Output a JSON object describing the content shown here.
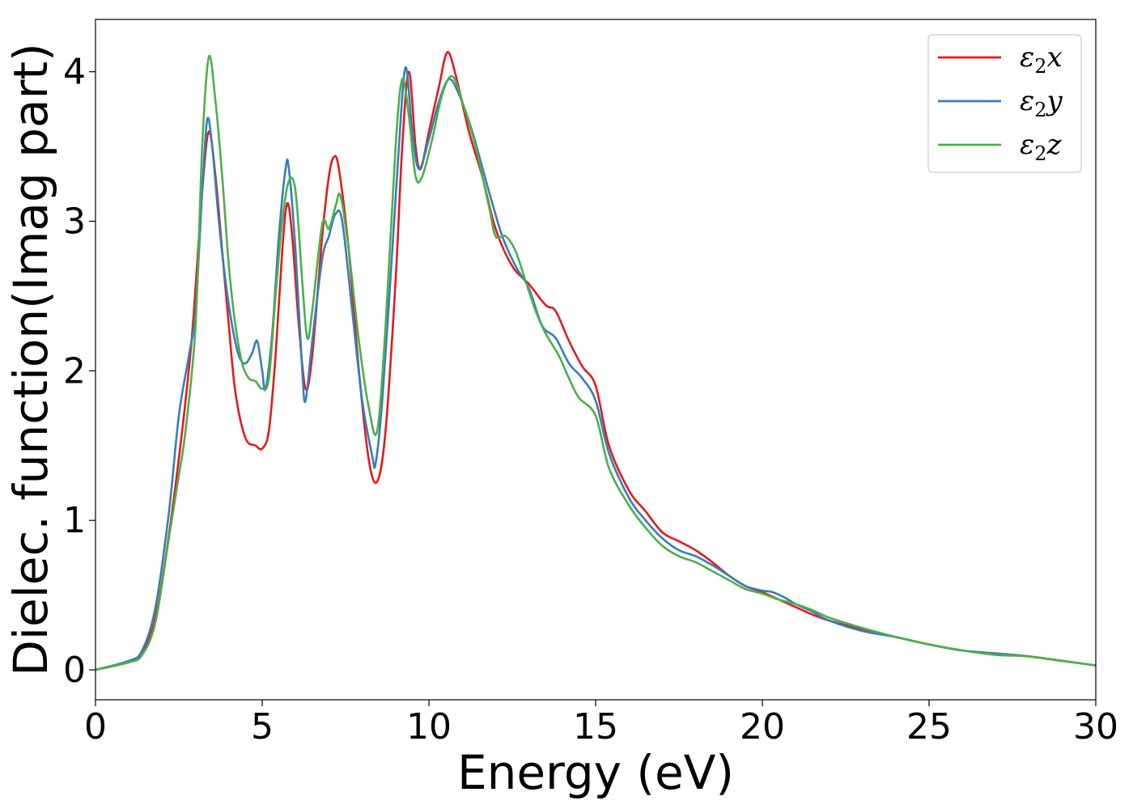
{
  "chart_data": {
    "type": "line",
    "title": "",
    "xlabel": "Energy (eV)",
    "ylabel": "Dielec. function(Imag part)",
    "xlim": [
      0,
      30
    ],
    "ylim": [
      -0.2,
      4.35
    ],
    "xticks": [
      0,
      5,
      10,
      15,
      20,
      25,
      30
    ],
    "yticks": [
      0,
      1,
      2,
      3,
      4
    ],
    "grid": false,
    "legend_position": "top-right",
    "series": [
      {
        "name": "ε2x",
        "name_base": "ε",
        "name_sub": "2",
        "name_tail": "x",
        "color": "#e41a1c",
        "points": [
          [
            0,
            0
          ],
          [
            1,
            0.06
          ],
          [
            1.4,
            0.12
          ],
          [
            1.8,
            0.35
          ],
          [
            2.2,
            0.9
          ],
          [
            2.6,
            1.6
          ],
          [
            2.9,
            2.25
          ],
          [
            3.2,
            3.2
          ],
          [
            3.4,
            3.6
          ],
          [
            3.6,
            3.3
          ],
          [
            3.8,
            2.8
          ],
          [
            4.0,
            2.3
          ],
          [
            4.2,
            1.85
          ],
          [
            4.5,
            1.55
          ],
          [
            4.8,
            1.5
          ],
          [
            5.0,
            1.48
          ],
          [
            5.2,
            1.6
          ],
          [
            5.4,
            2.1
          ],
          [
            5.6,
            2.8
          ],
          [
            5.75,
            3.12
          ],
          [
            5.9,
            2.9
          ],
          [
            6.1,
            2.3
          ],
          [
            6.3,
            1.88
          ],
          [
            6.5,
            2.1
          ],
          [
            6.8,
            2.9
          ],
          [
            7.0,
            3.3
          ],
          [
            7.15,
            3.43
          ],
          [
            7.3,
            3.35
          ],
          [
            7.6,
            2.8
          ],
          [
            7.9,
            2.0
          ],
          [
            8.2,
            1.4
          ],
          [
            8.45,
            1.26
          ],
          [
            8.7,
            1.6
          ],
          [
            9.0,
            2.6
          ],
          [
            9.2,
            3.5
          ],
          [
            9.4,
            4.0
          ],
          [
            9.6,
            3.5
          ],
          [
            9.75,
            3.35
          ],
          [
            10.0,
            3.6
          ],
          [
            10.3,
            3.9
          ],
          [
            10.55,
            4.13
          ],
          [
            10.8,
            3.98
          ],
          [
            11.2,
            3.6
          ],
          [
            11.6,
            3.3
          ],
          [
            12.0,
            2.95
          ],
          [
            12.5,
            2.7
          ],
          [
            13.0,
            2.58
          ],
          [
            13.5,
            2.44
          ],
          [
            13.8,
            2.4
          ],
          [
            14.2,
            2.2
          ],
          [
            14.6,
            2.03
          ],
          [
            15.0,
            1.9
          ],
          [
            15.4,
            1.5
          ],
          [
            16.0,
            1.2
          ],
          [
            16.5,
            1.06
          ],
          [
            17.0,
            0.92
          ],
          [
            17.5,
            0.86
          ],
          [
            18.0,
            0.8
          ],
          [
            18.5,
            0.72
          ],
          [
            19.0,
            0.63
          ],
          [
            19.5,
            0.56
          ],
          [
            20.0,
            0.52
          ],
          [
            20.5,
            0.47
          ],
          [
            21.0,
            0.42
          ],
          [
            21.5,
            0.37
          ],
          [
            22.0,
            0.33
          ],
          [
            23.0,
            0.27
          ],
          [
            24.0,
            0.22
          ],
          [
            25.0,
            0.17
          ],
          [
            26.0,
            0.13
          ],
          [
            27.0,
            0.11
          ],
          [
            28.0,
            0.09
          ],
          [
            29.0,
            0.06
          ],
          [
            30.0,
            0.03
          ]
        ]
      },
      {
        "name": "ε2y",
        "name_base": "ε",
        "name_sub": "2",
        "name_tail": "y",
        "color": "#377eb8",
        "points": [
          [
            0,
            0
          ],
          [
            1,
            0.06
          ],
          [
            1.4,
            0.13
          ],
          [
            1.8,
            0.42
          ],
          [
            2.2,
            1.05
          ],
          [
            2.5,
            1.7
          ],
          [
            2.8,
            2.1
          ],
          [
            3.0,
            2.4
          ],
          [
            3.2,
            3.2
          ],
          [
            3.35,
            3.68
          ],
          [
            3.5,
            3.5
          ],
          [
            3.7,
            3.0
          ],
          [
            3.9,
            2.6
          ],
          [
            4.1,
            2.3
          ],
          [
            4.3,
            2.1
          ],
          [
            4.5,
            2.05
          ],
          [
            4.7,
            2.12
          ],
          [
            4.85,
            2.2
          ],
          [
            5.0,
            2.0
          ],
          [
            5.1,
            1.88
          ],
          [
            5.3,
            2.25
          ],
          [
            5.5,
            2.9
          ],
          [
            5.7,
            3.35
          ],
          [
            5.8,
            3.35
          ],
          [
            6.0,
            2.8
          ],
          [
            6.2,
            2.0
          ],
          [
            6.3,
            1.8
          ],
          [
            6.5,
            2.2
          ],
          [
            6.8,
            2.75
          ],
          [
            7.0,
            2.9
          ],
          [
            7.2,
            3.05
          ],
          [
            7.4,
            3.0
          ],
          [
            7.7,
            2.4
          ],
          [
            8.0,
            1.8
          ],
          [
            8.3,
            1.43
          ],
          [
            8.4,
            1.38
          ],
          [
            8.6,
            1.8
          ],
          [
            8.9,
            2.8
          ],
          [
            9.1,
            3.5
          ],
          [
            9.3,
            4.03
          ],
          [
            9.5,
            3.6
          ],
          [
            9.7,
            3.35
          ],
          [
            10.0,
            3.55
          ],
          [
            10.3,
            3.8
          ],
          [
            10.6,
            3.95
          ],
          [
            10.9,
            3.85
          ],
          [
            11.3,
            3.6
          ],
          [
            11.8,
            3.2
          ],
          [
            12.2,
            2.9
          ],
          [
            12.6,
            2.7
          ],
          [
            13.0,
            2.55
          ],
          [
            13.4,
            2.3
          ],
          [
            13.8,
            2.22
          ],
          [
            14.2,
            2.05
          ],
          [
            14.6,
            1.95
          ],
          [
            15.0,
            1.8
          ],
          [
            15.4,
            1.45
          ],
          [
            16.0,
            1.15
          ],
          [
            16.5,
            1.0
          ],
          [
            17.0,
            0.88
          ],
          [
            17.5,
            0.8
          ],
          [
            18.0,
            0.76
          ],
          [
            18.5,
            0.7
          ],
          [
            19.0,
            0.63
          ],
          [
            19.5,
            0.56
          ],
          [
            20.0,
            0.53
          ],
          [
            20.3,
            0.52
          ],
          [
            20.7,
            0.48
          ],
          [
            21.0,
            0.44
          ],
          [
            21.5,
            0.39
          ],
          [
            22.0,
            0.33
          ],
          [
            23.0,
            0.26
          ],
          [
            24.0,
            0.22
          ],
          [
            25.0,
            0.17
          ],
          [
            26.0,
            0.13
          ],
          [
            27.0,
            0.11
          ],
          [
            28.0,
            0.09
          ],
          [
            29.0,
            0.06
          ],
          [
            30.0,
            0.03
          ]
        ]
      },
      {
        "name": "ε2z",
        "name_base": "ε",
        "name_sub": "2",
        "name_tail": "z",
        "color": "#4daf4a",
        "points": [
          [
            0,
            0
          ],
          [
            1,
            0.05
          ],
          [
            1.4,
            0.1
          ],
          [
            1.8,
            0.32
          ],
          [
            2.2,
            0.88
          ],
          [
            2.5,
            1.3
          ],
          [
            2.7,
            1.6
          ],
          [
            3.0,
            2.3
          ],
          [
            3.2,
            3.5
          ],
          [
            3.4,
            4.1
          ],
          [
            3.6,
            3.8
          ],
          [
            3.8,
            3.3
          ],
          [
            4.0,
            2.7
          ],
          [
            4.2,
            2.3
          ],
          [
            4.4,
            2.05
          ],
          [
            4.6,
            1.95
          ],
          [
            4.8,
            1.93
          ],
          [
            5.0,
            1.88
          ],
          [
            5.2,
            1.95
          ],
          [
            5.4,
            2.5
          ],
          [
            5.6,
            3.0
          ],
          [
            5.8,
            3.27
          ],
          [
            6.0,
            3.2
          ],
          [
            6.2,
            2.6
          ],
          [
            6.35,
            2.22
          ],
          [
            6.5,
            2.4
          ],
          [
            6.8,
            2.98
          ],
          [
            7.0,
            2.95
          ],
          [
            7.2,
            3.1
          ],
          [
            7.35,
            3.17
          ],
          [
            7.6,
            2.8
          ],
          [
            7.9,
            2.2
          ],
          [
            8.2,
            1.75
          ],
          [
            8.45,
            1.6
          ],
          [
            8.7,
            2.3
          ],
          [
            9.0,
            3.5
          ],
          [
            9.2,
            3.95
          ],
          [
            9.4,
            3.7
          ],
          [
            9.6,
            3.3
          ],
          [
            9.8,
            3.3
          ],
          [
            10.1,
            3.55
          ],
          [
            10.4,
            3.85
          ],
          [
            10.7,
            3.97
          ],
          [
            11.0,
            3.8
          ],
          [
            11.4,
            3.5
          ],
          [
            11.8,
            3.1
          ],
          [
            12.0,
            2.9
          ],
          [
            12.3,
            2.9
          ],
          [
            12.6,
            2.8
          ],
          [
            12.9,
            2.6
          ],
          [
            13.2,
            2.4
          ],
          [
            13.5,
            2.25
          ],
          [
            13.9,
            2.1
          ],
          [
            14.2,
            1.95
          ],
          [
            14.5,
            1.82
          ],
          [
            15.0,
            1.7
          ],
          [
            15.4,
            1.35
          ],
          [
            16.0,
            1.1
          ],
          [
            16.5,
            0.95
          ],
          [
            17.0,
            0.83
          ],
          [
            17.5,
            0.76
          ],
          [
            18.0,
            0.72
          ],
          [
            18.5,
            0.66
          ],
          [
            19.0,
            0.6
          ],
          [
            19.5,
            0.54
          ],
          [
            20.0,
            0.51
          ],
          [
            20.5,
            0.47
          ],
          [
            21.0,
            0.44
          ],
          [
            21.5,
            0.4
          ],
          [
            22.0,
            0.35
          ],
          [
            23.0,
            0.28
          ],
          [
            24.0,
            0.22
          ],
          [
            25.0,
            0.17
          ],
          [
            26.0,
            0.13
          ],
          [
            27.0,
            0.1
          ],
          [
            28.0,
            0.09
          ],
          [
            29.0,
            0.06
          ],
          [
            30.0,
            0.03
          ]
        ]
      }
    ]
  }
}
